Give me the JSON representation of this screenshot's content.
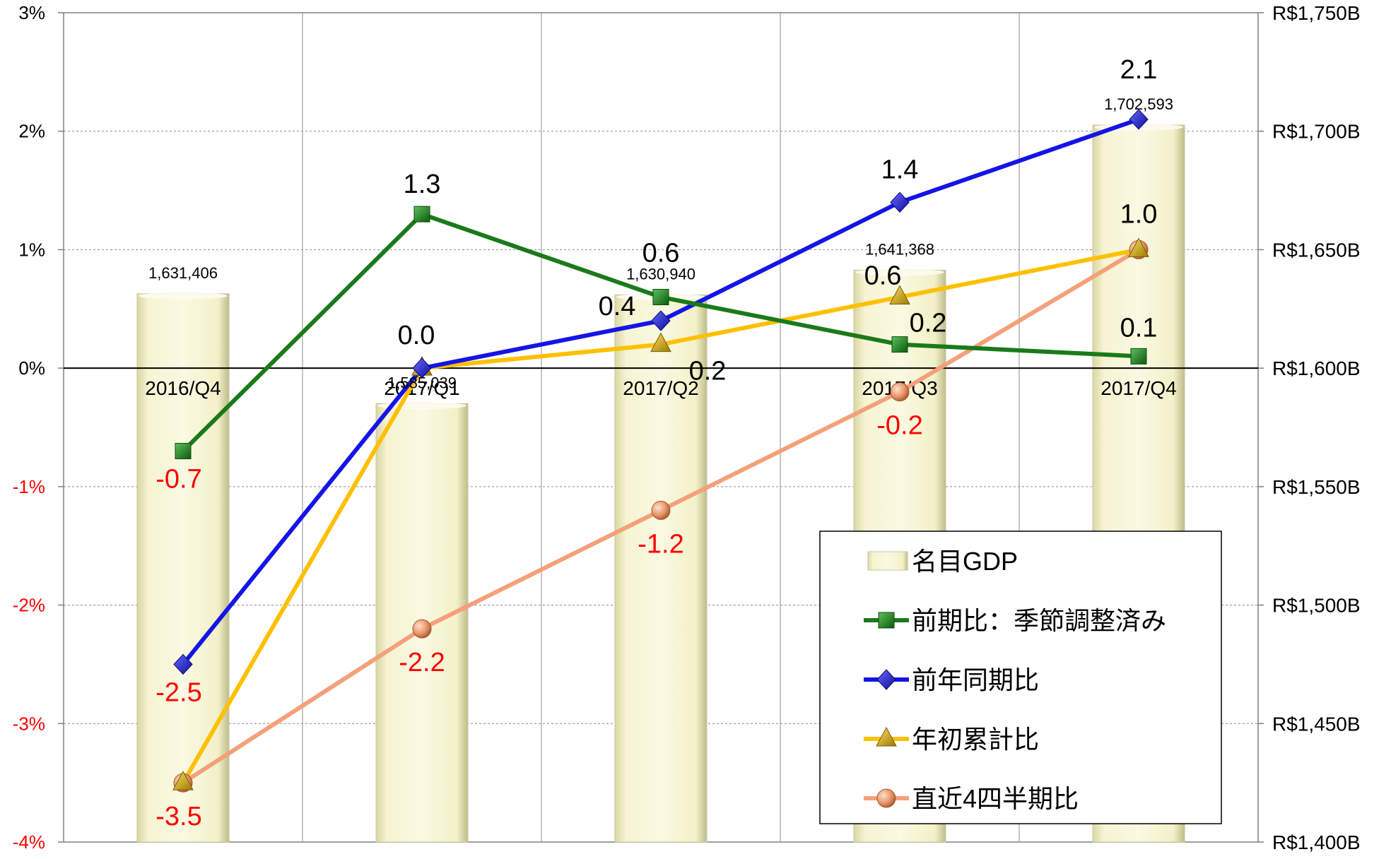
{
  "chart_data": {
    "type": "bar+line",
    "title": "",
    "categories": [
      "2016/Q4",
      "2017/Q1",
      "2017/Q2",
      "2017/Q3",
      "2017/Q4"
    ],
    "y_left": {
      "ticks": [
        "3%",
        "2%",
        "1%",
        "0%",
        "-1%",
        "-2%",
        "-3%",
        "-4%"
      ],
      "range": [
        -4,
        3
      ]
    },
    "y_right": {
      "ticks": [
        "R$1,750B",
        "R$1,700B",
        "R$1,650B",
        "R$1,600B",
        "R$1,550B",
        "R$1,500B",
        "R$1,450B",
        "R$1,400B"
      ],
      "range": [
        1400,
        1750
      ]
    },
    "grid": true,
    "legend_position": "bottom-right",
    "bars": {
      "name": "名目GDP",
      "axis": "right",
      "color": "#f3f1c8",
      "values": [
        1631406,
        1585039,
        1630940,
        1641368,
        1702593
      ],
      "labels": [
        "1,631,406",
        "1,585,039",
        "1,630,940",
        "1,641,368",
        "1,702,593"
      ]
    },
    "series": [
      {
        "name": "前期比：季節調整済み",
        "color": "#1a7a1a",
        "marker": "square",
        "values": [
          -0.7,
          1.3,
          0.6,
          0.2,
          0.1
        ],
        "labels": [
          "-0.7",
          "1.3",
          "0.6",
          "0.2",
          "0.1"
        ]
      },
      {
        "name": "前年同期比",
        "color": "#1414e6",
        "marker": "diamond",
        "values": [
          -2.5,
          0.0,
          0.4,
          1.4,
          2.1
        ],
        "labels": [
          "-2.5",
          "0.0",
          "0.4",
          "1.4",
          "2.1"
        ]
      },
      {
        "name": "年初累計比",
        "color": "#ffc000",
        "marker": "triangle",
        "values": [
          -3.5,
          0.0,
          0.2,
          0.6,
          1.0
        ],
        "labels": [
          "-3.5",
          "",
          "0.2",
          "0.6",
          ""
        ]
      },
      {
        "name": "直近4四半期比",
        "color": "#f4a07a",
        "marker": "circle",
        "values": [
          -3.5,
          -2.2,
          -1.2,
          -0.2,
          1.0
        ],
        "labels": [
          "",
          "-2.2",
          "-1.2",
          "-0.2",
          "1.0"
        ]
      }
    ],
    "colors": {
      "negative_label": "#ff0000",
      "positive_label": "#000000",
      "bar_stroke": "#c8c69a"
    }
  }
}
